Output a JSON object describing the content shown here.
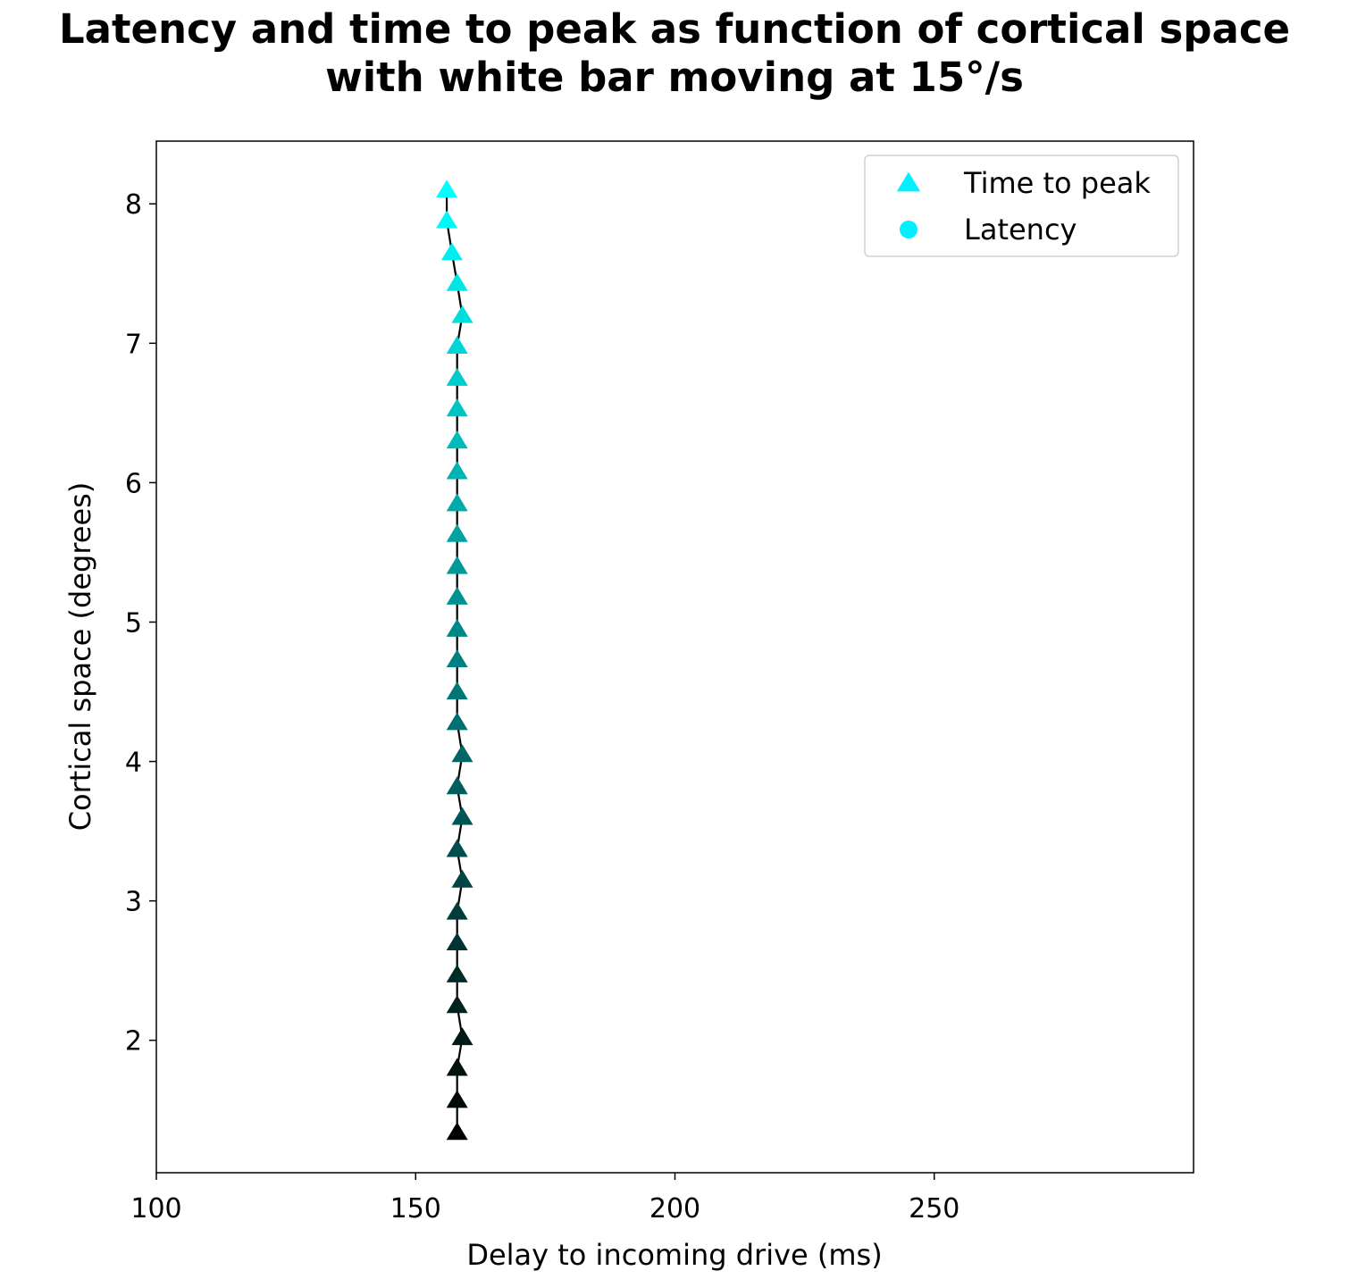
{
  "chart_data": {
    "type": "scatter",
    "title": [
      "Latency and time to peak as function of cortical space",
      "with white bar moving at 15°/s"
    ],
    "xlabel": "Delay to incoming drive (ms)",
    "ylabel": "Cortical space (degrees)",
    "xlim": [
      100,
      300
    ],
    "ylim": [
      1.05,
      8.45
    ],
    "xticks": [
      100,
      150,
      200,
      250
    ],
    "yticks": [
      2,
      3,
      4,
      5,
      6,
      7,
      8
    ],
    "grid": false,
    "legend_position": "top-right",
    "legend": [
      {
        "label": "Time to peak",
        "marker": "triangle",
        "color": "#00f0ff"
      },
      {
        "label": "Latency",
        "marker": "circle",
        "color": "#00f0ff"
      }
    ],
    "series": [
      {
        "name": "Time to peak",
        "marker": "triangle",
        "line_color": "#000000",
        "color_start": "#000000",
        "color_end": "#00ffff",
        "points": [
          {
            "x": 158,
            "y": 1.34
          },
          {
            "x": 158,
            "y": 1.57
          },
          {
            "x": 158,
            "y": 1.8
          },
          {
            "x": 159,
            "y": 2.02
          },
          {
            "x": 158,
            "y": 2.25
          },
          {
            "x": 158,
            "y": 2.47
          },
          {
            "x": 158,
            "y": 2.7
          },
          {
            "x": 158,
            "y": 2.92
          },
          {
            "x": 159,
            "y": 3.15
          },
          {
            "x": 158,
            "y": 3.37
          },
          {
            "x": 159,
            "y": 3.6
          },
          {
            "x": 158,
            "y": 3.82
          },
          {
            "x": 159,
            "y": 4.05
          },
          {
            "x": 158,
            "y": 4.28
          },
          {
            "x": 158,
            "y": 4.5
          },
          {
            "x": 158,
            "y": 4.73
          },
          {
            "x": 158,
            "y": 4.95
          },
          {
            "x": 158,
            "y": 5.18
          },
          {
            "x": 158,
            "y": 5.4
          },
          {
            "x": 158,
            "y": 5.63
          },
          {
            "x": 158,
            "y": 5.85
          },
          {
            "x": 158,
            "y": 6.08
          },
          {
            "x": 158,
            "y": 6.3
          },
          {
            "x": 158,
            "y": 6.53
          },
          {
            "x": 158,
            "y": 6.75
          },
          {
            "x": 158,
            "y": 6.98
          },
          {
            "x": 159,
            "y": 7.2
          },
          {
            "x": 158,
            "y": 7.43
          },
          {
            "x": 157,
            "y": 7.65
          },
          {
            "x": 156,
            "y": 7.88
          },
          {
            "x": 156,
            "y": 8.1
          }
        ]
      }
    ]
  }
}
